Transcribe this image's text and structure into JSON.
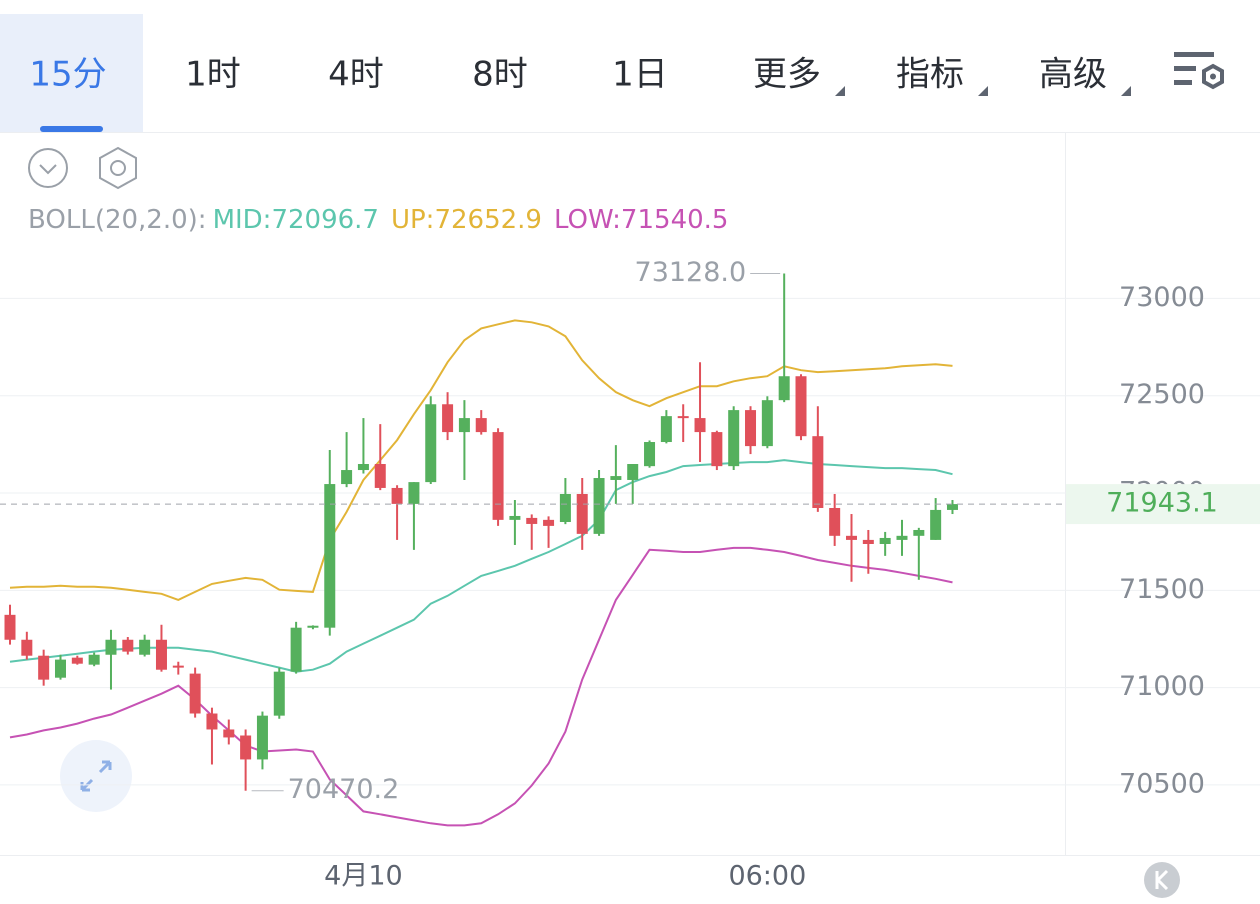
{
  "tabs": {
    "items": [
      "15分",
      "1时",
      "4时",
      "8时",
      "1日",
      "更多",
      "指标",
      "高级"
    ],
    "active": 0
  },
  "chart_data": {
    "type": "candlestick",
    "categories": [
      null,
      null,
      null,
      null,
      null,
      null,
      null,
      null,
      null,
      null,
      null,
      null,
      null,
      null,
      null,
      null,
      null,
      null,
      null,
      null,
      null,
      "4月10",
      null,
      null,
      null,
      null,
      null,
      null,
      null,
      null,
      null,
      null,
      null,
      null,
      null,
      null,
      null,
      null,
      null,
      null,
      null,
      null,
      null,
      null,
      null,
      "06:00",
      null,
      null,
      null,
      null,
      null,
      null,
      null,
      null,
      null,
      null,
      null
    ],
    "open": [
      71374,
      71246,
      71164,
      71051,
      71154,
      71118,
      71169,
      71246,
      71169,
      71246,
      71113,
      71072,
      70867,
      70785,
      70754,
      70631,
      70856,
      71082,
      71308,
      71308,
      72046,
      72118,
      72149,
      72026,
      71944,
      72056,
      72456,
      72313,
      72385,
      72313,
      71862,
      71872,
      71862,
      71851,
      71995,
      71790,
      72067,
      72067,
      72138,
      72262,
      72395,
      72385,
      72313,
      72138,
      72426,
      72241,
      72477,
      72600,
      72292,
      71923,
      71780,
      71759,
      71738,
      71759,
      71780,
      71759,
      71913
    ],
    "high": [
      71426,
      71287,
      71195,
      71169,
      71164,
      71180,
      71297,
      71260,
      71272,
      71323,
      71133,
      71103,
      70897,
      70836,
      70785,
      70877,
      71103,
      71338,
      71320,
      72221,
      72313,
      72385,
      72354,
      72040,
      72056,
      72497,
      72518,
      72477,
      72426,
      72333,
      71964,
      71890,
      71880,
      72077,
      72077,
      72118,
      72246,
      72149,
      72270,
      72426,
      72456,
      72672,
      72320,
      72446,
      72446,
      72497,
      73128,
      72610,
      72446,
      71995,
      71892,
      71810,
      71800,
      71862,
      71821,
      71974,
      71964
    ],
    "low": [
      71221,
      71144,
      71010,
      71041,
      71118,
      71110,
      70990,
      71170,
      71160,
      71082,
      71067,
      70846,
      70605,
      70708,
      70470.2,
      70580,
      70840,
      71072,
      71300,
      71267,
      72030,
      72100,
      72015,
      71759,
      71708,
      72046,
      72272,
      72067,
      72300,
      71831,
      71733,
      71708,
      71718,
      71840,
      71708,
      71780,
      71944,
      71944,
      72130,
      72255,
      72262,
      72159,
      72118,
      72118,
      72200,
      72230,
      72467,
      72272,
      71903,
      71728,
      71544,
      71585,
      71677,
      71677,
      71554,
      71759,
      71892
    ],
    "close": [
      71246,
      71164,
      71041,
      71144,
      71123,
      71169,
      71246,
      71185,
      71246,
      71092,
      71103,
      70867,
      70785,
      70744,
      70631,
      70856,
      71082,
      71308,
      71318,
      72046,
      72118,
      72149,
      72026,
      71944,
      72056,
      72456,
      72313,
      72385,
      72313,
      71862,
      71882,
      71841,
      71831,
      71995,
      71790,
      72077,
      72087,
      72149,
      72262,
      72395,
      72385,
      72313,
      72138,
      72426,
      72241,
      72477,
      72600,
      72292,
      71923,
      71780,
      71759,
      71738,
      71769,
      71780,
      71810,
      71913,
      71943.1
    ],
    "up_color": "#55b05d",
    "down_color": "#e0505a",
    "indicator": {
      "label": "BOLL(20,2.0):",
      "lines": [
        {
          "legend": "MID:72096.7",
          "color": "#5cc6ad",
          "values": [
            71133,
            71144,
            71154,
            71164,
            71174,
            71185,
            71195,
            71200,
            71205,
            71205,
            71205,
            71195,
            71185,
            71164,
            71144,
            71123,
            71103,
            71082,
            71092,
            71123,
            71185,
            71226,
            71267,
            71308,
            71349,
            71431,
            71472,
            71523,
            71574,
            71600,
            71626,
            71662,
            71697,
            71738,
            71780,
            71862,
            72015,
            72056,
            72087,
            72108,
            72138,
            72144,
            72149,
            72154,
            72159,
            72159,
            72169,
            72159,
            72149,
            72144,
            72138,
            72133,
            72128,
            72128,
            72123,
            72118,
            72096.7
          ]
        },
        {
          "legend": "UP:72652.9",
          "color": "#e2b437",
          "values": [
            71513,
            71518,
            71518,
            71523,
            71518,
            71518,
            71513,
            71503,
            71492,
            71482,
            71451,
            71492,
            71533,
            71549,
            71564,
            71554,
            71503,
            71497,
            71492,
            71759,
            71903,
            72067,
            72169,
            72272,
            72405,
            72528,
            72672,
            72785,
            72846,
            72867,
            72887,
            72877,
            72856,
            72805,
            72682,
            72590,
            72518,
            72477,
            72446,
            72487,
            72518,
            72549,
            72549,
            72574,
            72590,
            72600,
            72651,
            72631,
            72621,
            72626,
            72631,
            72636,
            72641,
            72651,
            72656,
            72662,
            72652.9
          ]
        },
        {
          "legend": "LOW:71540.5",
          "color": "#c652b4",
          "values": [
            70744,
            70759,
            70780,
            70795,
            70815,
            70841,
            70862,
            70897,
            70933,
            70969,
            71010,
            70939,
            70856,
            70780,
            70703,
            70672,
            70677,
            70682,
            70672,
            70528,
            70446,
            70364,
            70349,
            70333,
            70318,
            70303,
            70292,
            70292,
            70303,
            70349,
            70405,
            70497,
            70610,
            70774,
            71041,
            71246,
            71451,
            71579,
            71708,
            71703,
            71697,
            71697,
            71708,
            71718,
            71718,
            71708,
            71697,
            71677,
            71656,
            71641,
            71626,
            71615,
            71605,
            71590,
            71574,
            71559,
            71540.5
          ]
        }
      ]
    },
    "annotations": [
      "73128.0",
      "70470.2"
    ],
    "ylim": [
      70140,
      73300
    ],
    "yticks": [
      70500,
      71000,
      71500,
      72000,
      72500,
      73000
    ],
    "grid": true
  }
}
